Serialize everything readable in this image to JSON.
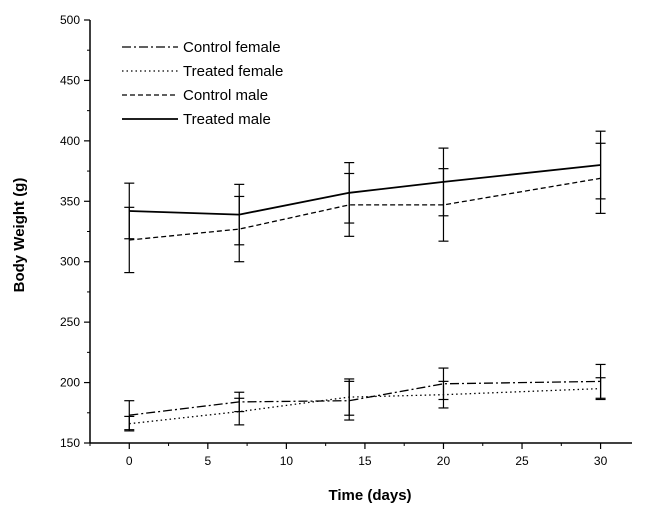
{
  "chart_data": {
    "type": "line",
    "xlabel": "Time (days)",
    "ylabel": "Body Weight (g)",
    "xlim": [
      -2.5,
      32
    ],
    "ylim": [
      150,
      500
    ],
    "xticks": [
      0,
      5,
      10,
      15,
      20,
      25,
      30
    ],
    "yticks": [
      150,
      200,
      250,
      300,
      350,
      400,
      450,
      500
    ],
    "x_tick_labels": [
      "0",
      "5",
      "10",
      "15",
      "20",
      "25",
      "30"
    ],
    "y_tick_labels": [
      "150",
      "200",
      "250",
      "300",
      "350",
      "400",
      "450",
      "500"
    ],
    "grid": false,
    "legend_position": "top-left",
    "x": [
      0,
      7,
      14,
      20,
      30
    ],
    "series": [
      {
        "name": "Control female",
        "line_style": "dash-dot",
        "values": [
          173,
          184,
          185,
          199,
          201
        ],
        "error": [
          12,
          8,
          16,
          13,
          14
        ]
      },
      {
        "name": "Treated female",
        "line_style": "dotted",
        "values": [
          166,
          176,
          188,
          190,
          195
        ],
        "error": [
          6,
          11,
          15,
          11,
          9
        ]
      },
      {
        "name": "Control male",
        "line_style": "dashed",
        "values": [
          318,
          327,
          347,
          347,
          369
        ],
        "error": [
          27,
          27,
          26,
          30,
          29
        ]
      },
      {
        "name": "Treated male",
        "line_style": "solid",
        "values": [
          342,
          339,
          357,
          366,
          380
        ],
        "error": [
          23,
          25,
          25,
          28,
          28
        ]
      }
    ]
  }
}
